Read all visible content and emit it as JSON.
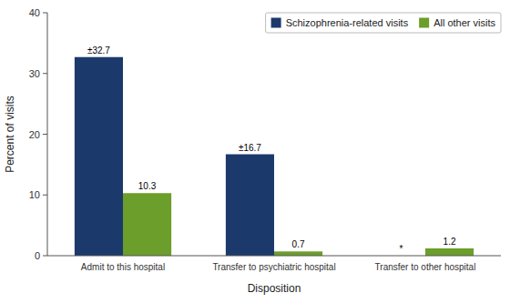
{
  "chart_data": {
    "type": "bar",
    "categories": [
      "Admit to this hospital",
      "Transfer to psychiatric hospital",
      "Transfer to other hospital"
    ],
    "series": [
      {
        "name": "Schizophrenia-related visits",
        "color": "#1B3A6B",
        "values": [
          32.7,
          16.7,
          0.0
        ],
        "value_labels": [
          "±32.7",
          "±16.7",
          "*"
        ]
      },
      {
        "name": "All other visits",
        "color": "#6B9E2A",
        "values": [
          10.3,
          0.7,
          1.2
        ]
      }
    ],
    "xlabel": "Disposition",
    "ylabel": "Percent of visits",
    "ylim": [
      0,
      40
    ],
    "yticks": [
      0,
      10,
      20,
      30,
      40
    ],
    "grid": false,
    "legend": "upper right",
    "data_labels": true
  }
}
